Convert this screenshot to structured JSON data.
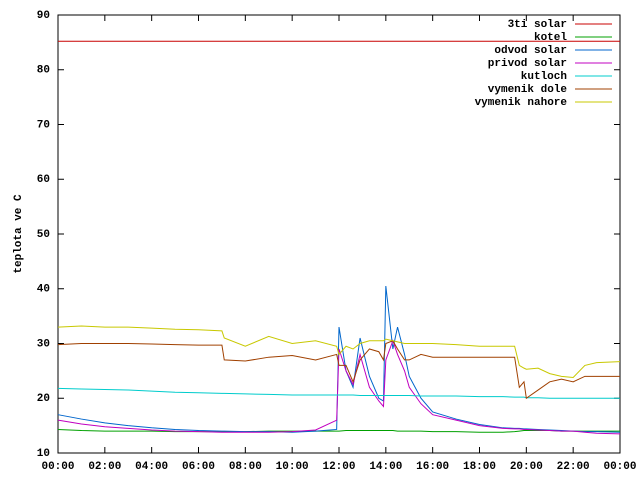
{
  "chart_data": {
    "type": "line",
    "y_label": "teplota ve C",
    "x": [
      0,
      1,
      2,
      3,
      4,
      5,
      6,
      7,
      7.1,
      8,
      9,
      10,
      11,
      11.9,
      12,
      12.3,
      12.6,
      12.9,
      13.3,
      13.7,
      13.9,
      14,
      14.3,
      14.5,
      14.8,
      15,
      15.5,
      16,
      17,
      18,
      19,
      19.5,
      19.7,
      19.9,
      20,
      20.5,
      21,
      21.5,
      22,
      22.5,
      23,
      24
    ],
    "xlim": [
      0,
      24
    ],
    "xticks": [
      {
        "value": 0,
        "label": "00:00"
      },
      {
        "value": 2,
        "label": "02:00"
      },
      {
        "value": 4,
        "label": "04:00"
      },
      {
        "value": 6,
        "label": "06:00"
      },
      {
        "value": 8,
        "label": "08:00"
      },
      {
        "value": 10,
        "label": "10:00"
      },
      {
        "value": 12,
        "label": "12:00"
      },
      {
        "value": 14,
        "label": "14:00"
      },
      {
        "value": 16,
        "label": "16:00"
      },
      {
        "value": 18,
        "label": "18:00"
      },
      {
        "value": 20,
        "label": "20:00"
      },
      {
        "value": 22,
        "label": "22:00"
      },
      {
        "value": 24,
        "label": "00:00"
      }
    ],
    "ylim": [
      10,
      90
    ],
    "yticks": [
      10,
      20,
      30,
      40,
      50,
      60,
      70,
      80,
      90
    ],
    "legend": "top-right",
    "series": [
      {
        "name": "3ti solar",
        "color": "#c80000",
        "values": [
          85.2,
          85.2,
          85.2,
          85.2,
          85.2,
          85.2,
          85.2,
          85.2,
          85.2,
          85.2,
          85.2,
          85.2,
          85.2,
          85.2,
          85.2,
          85.2,
          85.2,
          85.2,
          85.2,
          85.2,
          85.2,
          85.2,
          85.2,
          85.2,
          85.2,
          85.2,
          85.2,
          85.2,
          85.2,
          85.2,
          85.2,
          85.2,
          85.2,
          85.2,
          85.2,
          85.2,
          85.2,
          85.2,
          85.2,
          85.2,
          85.2,
          85.2
        ]
      },
      {
        "name": "kotel",
        "color": "#00a000",
        "values": [
          14.3,
          14.1,
          14,
          14,
          14,
          13.9,
          13.9,
          13.9,
          13.9,
          13.9,
          14,
          14,
          14,
          14,
          14,
          14.1,
          14.1,
          14.1,
          14.1,
          14.1,
          14.1,
          14.1,
          14.1,
          14,
          14,
          14,
          14,
          13.9,
          13.9,
          13.8,
          13.8,
          13.9,
          14,
          14.1,
          14.1,
          14.1,
          14.1,
          14,
          14,
          14,
          14,
          14
        ]
      },
      {
        "name": "odvod solar",
        "color": "#0066cc",
        "values": [
          17,
          16.2,
          15.5,
          15,
          14.6,
          14.3,
          14.1,
          14,
          14,
          13.9,
          13.9,
          13.8,
          14,
          14.3,
          33,
          25,
          22,
          31,
          24,
          20,
          19.5,
          40.5,
          29,
          33,
          28,
          24,
          20,
          17.5,
          16.2,
          15.2,
          14.6,
          14.5,
          14.5,
          14.4,
          14.4,
          14.3,
          14.2,
          14.1,
          14,
          13.9,
          13.9,
          13.8
        ]
      },
      {
        "name": "privod solar",
        "color": "#c000c0",
        "values": [
          16,
          15.3,
          14.8,
          14.5,
          14.2,
          14,
          13.9,
          13.8,
          13.8,
          13.8,
          13.8,
          13.9,
          14.2,
          16,
          29,
          25,
          22.5,
          28,
          22,
          19.5,
          18.5,
          27,
          30.5,
          28,
          25,
          22,
          19,
          17,
          16,
          15,
          14.5,
          14.4,
          14.4,
          14.3,
          14.3,
          14.2,
          14.1,
          14,
          14,
          13.8,
          13.6,
          13.5
        ]
      },
      {
        "name": "kutloch",
        "color": "#00cccc",
        "values": [
          21.8,
          21.7,
          21.6,
          21.5,
          21.3,
          21.1,
          21,
          20.9,
          20.9,
          20.8,
          20.7,
          20.6,
          20.6,
          20.6,
          20.6,
          20.6,
          20.6,
          20.5,
          20.5,
          20.5,
          20.5,
          20.5,
          20.5,
          20.5,
          20.5,
          20.5,
          20.4,
          20.4,
          20.4,
          20.3,
          20.3,
          20.2,
          20.2,
          20.2,
          20.1,
          20.1,
          20,
          20,
          20,
          20,
          20,
          20
        ]
      },
      {
        "name": "vymenik dole",
        "color": "#a04000",
        "values": [
          29.8,
          30,
          30,
          30,
          29.9,
          29.8,
          29.7,
          29.7,
          27,
          26.8,
          27.5,
          27.8,
          27,
          28,
          26,
          26,
          23,
          27,
          29,
          28.5,
          27,
          30,
          30.5,
          29,
          27,
          27,
          28,
          27.5,
          27.5,
          27.5,
          27.5,
          27.5,
          22,
          23,
          20,
          21.5,
          23,
          23.5,
          23,
          24,
          24,
          24
        ]
      },
      {
        "name": "vymenik nahore",
        "color": "#c8c800",
        "values": [
          33,
          33.2,
          33,
          33,
          32.8,
          32.6,
          32.5,
          32.3,
          31,
          29.5,
          31.3,
          30,
          30.5,
          29.5,
          28,
          29.5,
          29,
          30,
          30.5,
          30.5,
          30.5,
          30.8,
          30.5,
          30.3,
          30,
          30,
          30,
          30,
          29.8,
          29.5,
          29.5,
          29.5,
          26,
          25.5,
          25.3,
          25.5,
          24.5,
          24,
          23.8,
          26,
          26.5,
          26.7
        ]
      }
    ]
  }
}
